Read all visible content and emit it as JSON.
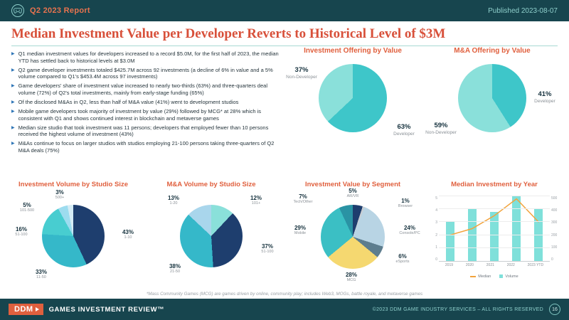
{
  "header": {
    "report_label": "Q2 2023 Report",
    "published": "Published 2023-08-07"
  },
  "title": "Median Investment Value per Developer Reverts to Historical Level of $3M",
  "bullets": [
    "Q1 median investment values for developers increased to a record $5.0M, for the first half of 2023, the median YTD has settled back to historical levels at $3.0M",
    "Q2 game developer investments totaled $425.7M across 92 investments (a decline of 6% in value and a 5% volume compared to Q1's $453.4M across 97 investments)",
    "Game developers' share of investment value increased to nearly two-thirds (63%) and three-quarters deal volume (72%) of Q2's total investments, mainly from early-stage funding (65%)",
    "Of the disclosed M&As in Q2, less than half of M&A value (41%) went to development studios",
    "Mobile game developers took majority of investment by value (29%) followed by MCG* at 28% which is consistent with Q1 and shows continued interest in blockchain and metaverse games",
    "Median size studio that took investment was 11 persons; developers that employed fewer than 10 persons received the highest volume of investment (43%)",
    "M&As continue to focus on larger studios with studios employing 21-100 persons taking three-quarters of Q2 M&A deals (75%)"
  ],
  "chart_data": [
    {
      "type": "pie",
      "title": "Investment Offering by Value",
      "slices": [
        {
          "label": "Developer",
          "value": 63,
          "pct_text": "63%",
          "color": "#3ec6c9"
        },
        {
          "label": "Non-Developer",
          "value": 37,
          "pct_text": "37%",
          "color": "#8ae0da"
        }
      ]
    },
    {
      "type": "pie",
      "title": "M&A Offering by Value",
      "slices": [
        {
          "label": "Developer",
          "value": 41,
          "pct_text": "41%",
          "color": "#3ec6c9"
        },
        {
          "label": "Non-Developer",
          "value": 59,
          "pct_text": "59%",
          "color": "#8ae0da"
        }
      ]
    },
    {
      "type": "pie",
      "title": "Investment Volume by Studio Size",
      "slices": [
        {
          "label": "1-10",
          "value": 43,
          "pct_text": "43%",
          "color": "#1e3e6e"
        },
        {
          "label": "11-50",
          "value": 33,
          "pct_text": "33%",
          "color": "#35b8c9"
        },
        {
          "label": "51-100",
          "value": 16,
          "pct_text": "16%",
          "color": "#48cdd0"
        },
        {
          "label": "101-500",
          "value": 5,
          "pct_text": "5%",
          "color": "#9ddcef"
        },
        {
          "label": "500+",
          "value": 3,
          "pct_text": "3%",
          "color": "#d5ecf5"
        }
      ]
    },
    {
      "type": "pie",
      "title": "M&A Volume by Studio Size",
      "slices": [
        {
          "label": "101+",
          "value": 12,
          "pct_text": "12%",
          "color": "#8ae0da"
        },
        {
          "label": "51-100",
          "value": 37,
          "pct_text": "37%",
          "color": "#1e3e6e"
        },
        {
          "label": "21-50",
          "value": 38,
          "pct_text": "38%",
          "color": "#35b8c9"
        },
        {
          "label": "1-20",
          "value": 13,
          "pct_text": "13%",
          "color": "#a9d6ec"
        }
      ]
    },
    {
      "type": "pie",
      "title": "Investment Value by Segment",
      "slices": [
        {
          "label": "AR/VR",
          "value": 5,
          "pct_text": "5%",
          "color": "#1e3e6e"
        },
        {
          "label": "Browser",
          "value": 1,
          "pct_text": "1%",
          "color": "#c9ced3"
        },
        {
          "label": "Console/PC",
          "value": 24,
          "pct_text": "24%",
          "color": "#b8d4e4"
        },
        {
          "label": "eSports",
          "value": 6,
          "pct_text": "6%",
          "color": "#5d7d8e"
        },
        {
          "label": "MCG",
          "value": 28,
          "pct_text": "28%",
          "color": "#f5d870"
        },
        {
          "label": "Mobile",
          "value": 29,
          "pct_text": "29%",
          "color": "#3bbfc4"
        },
        {
          "label": "Tech/Other",
          "value": 7,
          "pct_text": "7%",
          "color": "#2a93a4"
        }
      ]
    },
    {
      "type": "bar+line",
      "title": "Median Investment by Year",
      "categories": [
        "2019",
        "2020",
        "2021",
        "2022",
        "2023 YTD"
      ],
      "series": [
        {
          "name": "Volume",
          "kind": "bar",
          "color": "#7fe0da",
          "values": [
            300,
            400,
            380,
            500,
            400
          ]
        },
        {
          "name": "Median",
          "kind": "line",
          "color": "#f2a33c",
          "values": [
            2,
            2.5,
            3.5,
            4.8,
            3
          ]
        }
      ],
      "axes": {
        "left": {
          "min": 0,
          "max": 5,
          "step": 1
        },
        "right": {
          "min": 0,
          "max": 500,
          "step": 100
        }
      },
      "legend_position": "bottom"
    }
  ],
  "footnote": "*Mass Community Games (MCG) are games driven by online, community play; includes Web3, MOGs, battle royale, and metaverse games",
  "footer": {
    "brand": "DDM",
    "brand_suffix": "GAMES INVESTMENT REVIEW™",
    "copyright": "©2023 DDM GAME INDUSTRY SERVICES – ALL RIGHTS RESERVED",
    "page": "16"
  }
}
